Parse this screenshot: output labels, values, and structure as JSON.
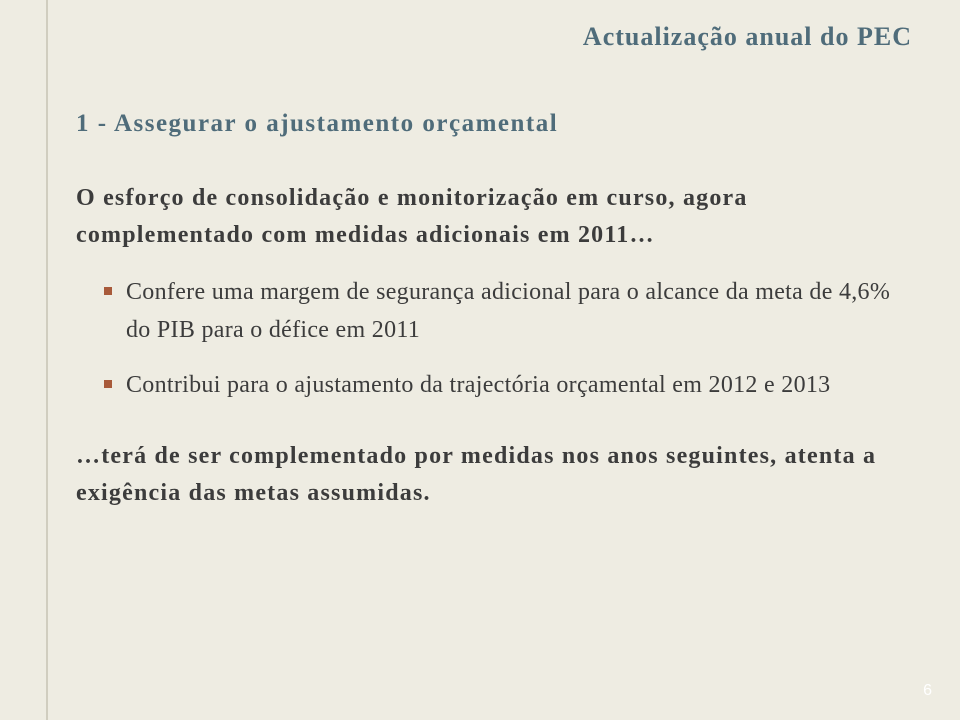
{
  "colors": {
    "background": "#eeece2",
    "margin_line": "#d0cdbf",
    "heading": "#4f6c7a",
    "body_text": "#3c3c3c",
    "bullet_dot": "#a85a3a",
    "page_num": "#ffffff"
  },
  "header": {
    "title": "Actualização anual do PEC"
  },
  "section": {
    "title": "1 - Assegurar o ajustamento orçamental"
  },
  "intro": "O esforço de consolidação e monitorização em curso, agora complementado com medidas adicionais em 2011…",
  "bullets": [
    "Confere uma margem de segurança adicional para o alcance da meta de 4,6% do PIB para o défice em 2011",
    "Contribui para o ajustamento da trajectória orçamental em 2012 e 2013"
  ],
  "outro": "…terá de ser complementado por medidas nos anos seguintes, atenta a exigência das metas assumidas.",
  "page_number": "6"
}
